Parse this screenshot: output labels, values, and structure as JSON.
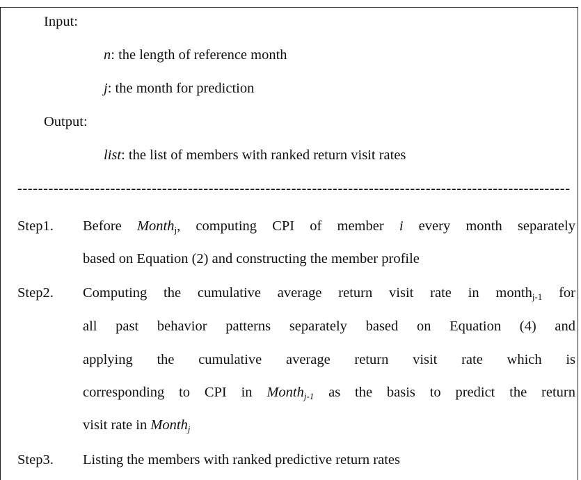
{
  "input": {
    "label": "Input:",
    "params": [
      {
        "name": "n",
        "desc": ": the length of reference month"
      },
      {
        "name": "j",
        "desc": ": the month for prediction"
      }
    ]
  },
  "output": {
    "label": "Output:",
    "params": [
      {
        "name": "list",
        "desc": ": the list of members with ranked return visit rates"
      }
    ]
  },
  "separator": "--------------------------------------------------------------------------------------------------------------------",
  "steps": [
    {
      "label": "Step1.",
      "lines": [
        [
          "Before ",
          "Month",
          "j",
          ", computing CPI of member ",
          "i",
          " every month separately"
        ],
        [
          "based on Equation (2) and constructing the member profile"
        ]
      ]
    },
    {
      "label": "Step2.",
      "lines": [
        [
          "Computing the cumulative average return visit rate in month",
          "j-1",
          " for"
        ],
        [
          "all past behavior patterns separately based on Equation (4) and"
        ],
        [
          "applying the cumulative average return visit rate which is"
        ],
        [
          "corresponding to CPI in ",
          "Month",
          "j-1",
          " as the basis to predict the return"
        ],
        [
          "visit rate in ",
          "Month",
          "j"
        ]
      ]
    },
    {
      "label": "Step3.",
      "lines": [
        [
          "Listing the members with ranked predictive return rates"
        ]
      ]
    }
  ]
}
